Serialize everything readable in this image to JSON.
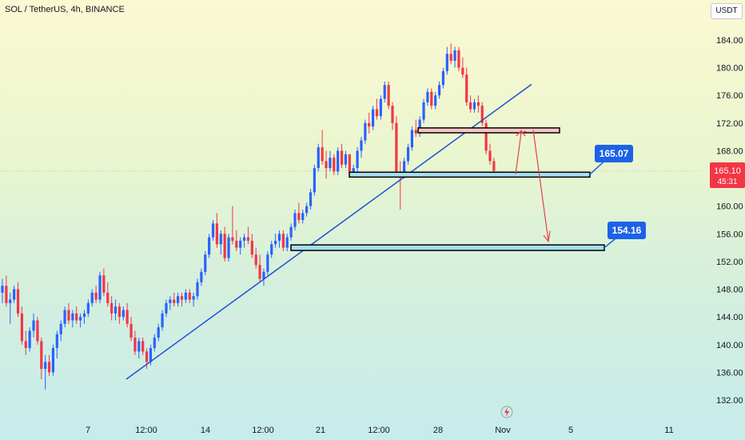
{
  "header": {
    "title": "SOL / TetherUS, 4h, BINANCE",
    "quote_currency": "USDT"
  },
  "price_badge": {
    "price": "165.10",
    "countdown": "45:31",
    "color": "#f23645"
  },
  "colors": {
    "up": "#2962ff",
    "down": "#f23645",
    "trendline": "#1e4fd6",
    "callout": "#1c62e8",
    "support_fill": "#a6dff0",
    "resistance_fill": "#f5c6c4",
    "arrow": "#e5404a"
  },
  "chart_data": {
    "type": "candlestick",
    "symbol": "SOL / TetherUS",
    "interval": "4h",
    "exchange": "BINANCE",
    "y_ticks": [
      184,
      180,
      176,
      172,
      168,
      164,
      160,
      156,
      152,
      148,
      144,
      140,
      136,
      132
    ],
    "y_tick_labels": [
      "184.00",
      "180.00",
      "176.00",
      "172.00",
      "168.00",
      "164.00",
      "160.00",
      "156.00",
      "152.00",
      "148.00",
      "144.00",
      "140.00",
      "136.00",
      "132.00"
    ],
    "ylim": [
      131,
      187
    ],
    "x_ticks": [
      "7",
      "12:00",
      "14",
      "12:00",
      "21",
      "12:00",
      "28",
      "Nov",
      "5",
      "11"
    ],
    "candles": [
      [
        147.5,
        149.5,
        146.0,
        148.5
      ],
      [
        148.5,
        150.0,
        145.5,
        146.0
      ],
      [
        146.0,
        147.5,
        143.0,
        146.5
      ],
      [
        146.5,
        148.5,
        146.0,
        148.0
      ],
      [
        148.0,
        149.0,
        144.0,
        144.5
      ],
      [
        144.5,
        145.5,
        140.0,
        140.5
      ],
      [
        140.5,
        142.0,
        138.5,
        139.5
      ],
      [
        139.5,
        142.5,
        139.0,
        142.0
      ],
      [
        142.0,
        144.5,
        141.0,
        143.5
      ],
      [
        143.5,
        144.0,
        140.0,
        140.5
      ],
      [
        140.5,
        141.0,
        135.0,
        136.5
      ],
      [
        136.5,
        138.5,
        133.5,
        137.5
      ],
      [
        137.5,
        138.5,
        135.5,
        136.0
      ],
      [
        136.0,
        140.0,
        135.5,
        139.5
      ],
      [
        139.5,
        142.0,
        138.0,
        141.5
      ],
      [
        141.5,
        143.5,
        140.5,
        143.0
      ],
      [
        143.0,
        145.5,
        142.5,
        145.0
      ],
      [
        145.0,
        146.0,
        143.0,
        143.5
      ],
      [
        143.5,
        145.0,
        142.5,
        144.5
      ],
      [
        144.5,
        145.5,
        143.0,
        143.5
      ],
      [
        143.5,
        144.5,
        142.5,
        144.0
      ],
      [
        144.0,
        145.0,
        143.0,
        144.5
      ],
      [
        144.5,
        146.5,
        144.0,
        146.0
      ],
      [
        146.0,
        148.0,
        145.5,
        147.5
      ],
      [
        147.5,
        148.5,
        146.0,
        146.5
      ],
      [
        146.5,
        150.5,
        146.0,
        150.0
      ],
      [
        150.0,
        151.0,
        147.0,
        147.5
      ],
      [
        147.5,
        149.0,
        145.5,
        146.0
      ],
      [
        146.0,
        147.0,
        143.5,
        144.5
      ],
      [
        144.5,
        146.5,
        143.5,
        145.5
      ],
      [
        145.5,
        146.0,
        143.0,
        144.0
      ],
      [
        144.0,
        145.5,
        143.5,
        145.0
      ],
      [
        145.0,
        146.0,
        142.5,
        143.0
      ],
      [
        143.0,
        144.0,
        140.5,
        141.0
      ],
      [
        141.0,
        142.0,
        138.5,
        139.0
      ],
      [
        139.0,
        141.0,
        138.0,
        140.5
      ],
      [
        140.5,
        141.0,
        138.5,
        139.0
      ],
      [
        139.0,
        139.5,
        136.5,
        137.5
      ],
      [
        137.5,
        140.0,
        137.0,
        139.5
      ],
      [
        139.5,
        141.5,
        139.0,
        141.0
      ],
      [
        141.0,
        143.0,
        140.5,
        142.5
      ],
      [
        142.5,
        145.0,
        142.0,
        144.5
      ],
      [
        144.5,
        146.5,
        144.0,
        146.0
      ],
      [
        146.0,
        147.0,
        145.0,
        146.5
      ],
      [
        146.5,
        147.5,
        145.5,
        146.0
      ],
      [
        146.0,
        147.5,
        145.5,
        147.0
      ],
      [
        147.0,
        147.5,
        145.5,
        146.5
      ],
      [
        146.5,
        148.0,
        146.0,
        147.5
      ],
      [
        147.5,
        148.0,
        146.0,
        146.5
      ],
      [
        146.5,
        147.5,
        145.5,
        147.0
      ],
      [
        147.0,
        149.5,
        146.5,
        149.0
      ],
      [
        149.0,
        151.0,
        148.5,
        150.5
      ],
      [
        150.5,
        153.5,
        150.0,
        153.0
      ],
      [
        153.0,
        156.0,
        152.5,
        155.5
      ],
      [
        155.5,
        158.0,
        155.0,
        157.5
      ],
      [
        157.5,
        159.0,
        154.0,
        154.5
      ],
      [
        154.5,
        156.5,
        153.0,
        156.0
      ],
      [
        156.0,
        157.0,
        152.0,
        152.5
      ],
      [
        152.5,
        156.0,
        152.0,
        155.5
      ],
      [
        155.5,
        160.0,
        154.5,
        155.0
      ],
      [
        155.0,
        156.5,
        153.5,
        154.0
      ],
      [
        154.0,
        155.5,
        153.0,
        155.0
      ],
      [
        155.0,
        156.0,
        154.0,
        155.5
      ],
      [
        155.5,
        157.0,
        154.5,
        155.0
      ],
      [
        155.0,
        156.0,
        152.5,
        153.0
      ],
      [
        153.0,
        154.0,
        151.0,
        151.5
      ],
      [
        151.5,
        153.0,
        149.0,
        149.5
      ],
      [
        149.5,
        151.0,
        148.5,
        150.5
      ],
      [
        150.5,
        153.5,
        150.0,
        153.0
      ],
      [
        153.0,
        155.0,
        152.5,
        154.5
      ],
      [
        154.5,
        156.0,
        154.0,
        155.0
      ],
      [
        155.0,
        156.5,
        154.0,
        156.0
      ],
      [
        156.0,
        156.5,
        153.5,
        154.0
      ],
      [
        154.0,
        156.0,
        153.5,
        155.5
      ],
      [
        155.5,
        157.5,
        155.0,
        157.0
      ],
      [
        157.0,
        159.5,
        156.5,
        159.0
      ],
      [
        159.0,
        160.5,
        157.5,
        158.0
      ],
      [
        158.0,
        159.5,
        157.5,
        159.0
      ],
      [
        159.0,
        160.5,
        158.5,
        160.0
      ],
      [
        160.0,
        162.5,
        159.5,
        162.0
      ],
      [
        162.0,
        166.0,
        161.5,
        165.5
      ],
      [
        165.5,
        169.0,
        165.0,
        168.5
      ],
      [
        168.5,
        171.0,
        166.0,
        166.5
      ],
      [
        166.5,
        168.0,
        164.0,
        165.5
      ],
      [
        165.5,
        168.0,
        165.0,
        167.0
      ],
      [
        167.0,
        167.5,
        164.5,
        165.0
      ],
      [
        165.0,
        168.5,
        164.5,
        168.0
      ],
      [
        168.0,
        169.0,
        165.5,
        166.0
      ],
      [
        166.0,
        168.0,
        165.5,
        167.5
      ],
      [
        167.5,
        167.5,
        164.5,
        165.0
      ],
      [
        165.0,
        166.0,
        164.5,
        165.5
      ],
      [
        165.5,
        168.5,
        165.0,
        168.0
      ],
      [
        168.0,
        170.0,
        167.0,
        169.5
      ],
      [
        169.5,
        172.5,
        169.0,
        172.0
      ],
      [
        172.0,
        173.5,
        170.5,
        171.5
      ],
      [
        171.5,
        174.5,
        171.0,
        174.0
      ],
      [
        174.0,
        175.5,
        172.5,
        173.0
      ],
      [
        173.0,
        176.0,
        172.5,
        175.5
      ],
      [
        175.5,
        178.0,
        175.0,
        177.5
      ],
      [
        177.5,
        178.0,
        174.0,
        174.5
      ],
      [
        174.5,
        175.0,
        171.0,
        172.0
      ],
      [
        172.0,
        173.0,
        164.5,
        165.0
      ],
      [
        165.0,
        166.5,
        159.5,
        164.5
      ],
      [
        164.5,
        167.0,
        164.0,
        166.5
      ],
      [
        166.5,
        169.0,
        166.0,
        168.5
      ],
      [
        168.5,
        171.5,
        168.0,
        171.0
      ],
      [
        171.0,
        172.5,
        170.0,
        170.5
      ],
      [
        170.5,
        173.0,
        170.0,
        172.5
      ],
      [
        172.5,
        175.5,
        172.0,
        175.0
      ],
      [
        175.0,
        177.0,
        174.5,
        176.5
      ],
      [
        176.5,
        177.0,
        174.0,
        174.5
      ],
      [
        174.5,
        176.5,
        174.0,
        176.0
      ],
      [
        176.0,
        178.0,
        175.5,
        177.5
      ],
      [
        177.5,
        180.0,
        177.0,
        179.5
      ],
      [
        179.5,
        183.0,
        179.0,
        182.0
      ],
      [
        182.0,
        183.5,
        180.5,
        181.0
      ],
      [
        181.0,
        183.0,
        180.0,
        182.5
      ],
      [
        182.5,
        183.0,
        179.5,
        180.0
      ],
      [
        180.0,
        181.5,
        178.5,
        179.0
      ],
      [
        179.0,
        180.0,
        174.5,
        175.0
      ],
      [
        175.0,
        176.0,
        173.5,
        174.0
      ],
      [
        174.0,
        175.5,
        173.5,
        175.0
      ],
      [
        175.0,
        176.0,
        173.5,
        174.5
      ],
      [
        174.5,
        175.0,
        171.5,
        172.0
      ],
      [
        172.0,
        172.5,
        167.5,
        168.0
      ],
      [
        168.0,
        169.0,
        166.0,
        166.5
      ],
      [
        166.5,
        167.0,
        164.5,
        165.1
      ]
    ],
    "annotations": {
      "resistance_zone": [
        170.6,
        171.3
      ],
      "support_zone": [
        164.2,
        164.9
      ],
      "target_zone": [
        153.6,
        154.4
      ],
      "callout_1": "165.07",
      "callout_2": "154.16",
      "trendline": [
        [
          0,
          135.0
        ],
        [
          1,
          177.5
        ]
      ]
    }
  }
}
